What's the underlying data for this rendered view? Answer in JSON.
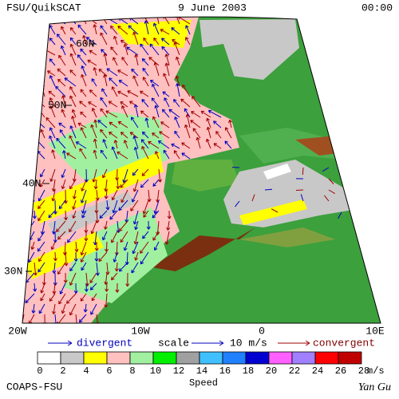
{
  "header": {
    "source": "FSU/QuikSCAT",
    "date": "9 June 2003",
    "time": "00:00"
  },
  "map": {
    "lat_labels": [
      "60N",
      "50N",
      "40N",
      "30N"
    ],
    "lon_labels": [
      "20W",
      "10W",
      "0",
      "10E"
    ]
  },
  "legend": {
    "divergent": "divergent",
    "scale": "scale",
    "scale_value": "10 m/s",
    "convergent": "convergent"
  },
  "colorbar": {
    "labels": [
      0,
      2,
      4,
      6,
      8,
      10,
      12,
      14,
      16,
      18,
      20,
      22,
      24,
      26,
      28
    ],
    "unit": "m/s",
    "title": "Speed",
    "colors": [
      "#ffffff",
      "#c8c8c8",
      "#ffff00",
      "#ffc0c0",
      "#a0f0a0",
      "#00f000",
      "#a0a0a0",
      "#40c0ff",
      "#2080ff",
      "#0000d0",
      "#ff60ff",
      "#a080ff",
      "#ff0000",
      "#c00000"
    ]
  },
  "footer": {
    "institution": "COAPS-FSU",
    "author": "Yan Gu"
  }
}
